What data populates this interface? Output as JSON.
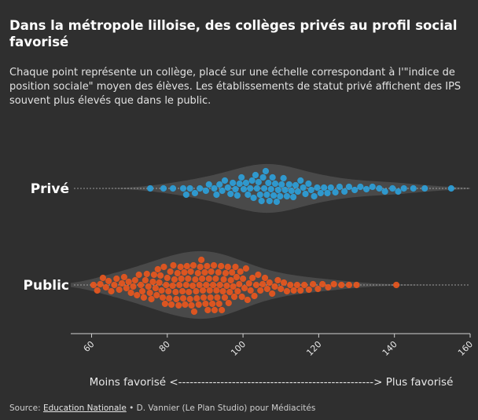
{
  "chart_data": {
    "type": "beeswarm",
    "title": "Dans la métropole lilloise, des collèges privés au profil social favorisé",
    "subtitle": "Chaque point représente un collège, placé sur une échelle correspondant à l'\"indice de position sociale\" moyen des élèves. Les établissements de statut privé affichent des IPS souvent plus élevés que dans le public.",
    "xlim": [
      54.5,
      160
    ],
    "xticks": [
      60,
      80,
      100,
      120,
      140,
      160
    ],
    "x_label": "Moins favorisé <---------------------------------------------------> Plus favorisé",
    "series": [
      {
        "name": "Privé",
        "color": "#2e9fd9",
        "values": [
          75.5,
          79,
          81.5,
          84.2,
          85,
          86,
          87.3,
          88.6,
          90.2,
          91,
          92.4,
          93,
          93.8,
          94.5,
          95.2,
          96,
          96.7,
          97.3,
          98,
          98.5,
          99.1,
          99.6,
          100.2,
          100.8,
          101.3,
          101.9,
          102.4,
          102.8,
          103.3,
          103.7,
          104.1,
          104.5,
          104.9,
          105.3,
          105.6,
          106,
          106.3,
          106.7,
          107,
          107.4,
          107.8,
          108.1,
          108.5,
          108.9,
          109.3,
          109.8,
          110.2,
          110.7,
          111.1,
          111.6,
          112.2,
          112.8,
          113.3,
          113.9,
          114.5,
          115.2,
          115.9,
          116.5,
          117.3,
          118,
          118.8,
          119.6,
          120.5,
          121.4,
          122.3,
          123.2,
          124.4,
          125.5,
          126.8,
          128,
          129.5,
          131,
          132.6,
          134.2,
          136,
          137.5,
          139.5,
          141,
          142.5,
          145,
          148,
          155
        ]
      },
      {
        "name": "Public",
        "color": "#e8571e",
        "values": [
          60.5,
          61.5,
          62.3,
          63,
          63.8,
          64.5,
          65.2,
          66,
          66.6,
          67.3,
          68,
          68.6,
          69.2,
          69.8,
          70.4,
          71,
          71.5,
          72,
          72.5,
          73,
          73.4,
          73.8,
          74.2,
          74.6,
          75,
          75.4,
          75.8,
          76.2,
          76.5,
          76.9,
          77.2,
          77.5,
          77.9,
          78.2,
          78.5,
          78.8,
          79.1,
          79.4,
          79.7,
          80,
          80.3,
          80.5,
          80.8,
          81.1,
          81.4,
          81.6,
          81.9,
          82.2,
          82.4,
          82.7,
          83,
          83.2,
          83.5,
          83.7,
          84,
          84.2,
          84.5,
          84.7,
          85,
          85.2,
          85.5,
          85.7,
          86,
          86.2,
          86.4,
          86.7,
          86.9,
          87.1,
          87.4,
          87.6,
          87.8,
          88.1,
          88.3,
          88.5,
          88.7,
          89,
          89.2,
          89.4,
          89.6,
          89.9,
          90.1,
          90.3,
          90.5,
          90.7,
          91,
          91.2,
          91.4,
          91.6,
          91.9,
          92.1,
          92.3,
          92.5,
          92.8,
          93,
          93.2,
          93.5,
          93.7,
          93.9,
          94.2,
          94.4,
          94.7,
          94.9,
          95.2,
          95.4,
          95.7,
          96,
          96.2,
          96.5,
          96.8,
          97.1,
          97.4,
          97.7,
          98,
          98.3,
          98.6,
          99,
          99.3,
          99.7,
          100,
          100.4,
          100.8,
          101.2,
          101.6,
          102,
          102.5,
          103,
          103.5,
          104,
          104.6,
          105.2,
          105.8,
          106.4,
          107,
          107.7,
          108.4,
          109.2,
          110,
          110.8,
          111.6,
          112.5,
          113.4,
          114.3,
          115.2,
          116.2,
          117.4,
          118.5,
          119.8,
          121,
          122.5,
          124,
          126,
          128,
          130,
          140.5
        ]
      }
    ],
    "source": {
      "prefix": "Source:",
      "link": "Education Nationale",
      "suffix": "• D. Vannier (Le Plan Studio) pour Médiacités"
    }
  }
}
